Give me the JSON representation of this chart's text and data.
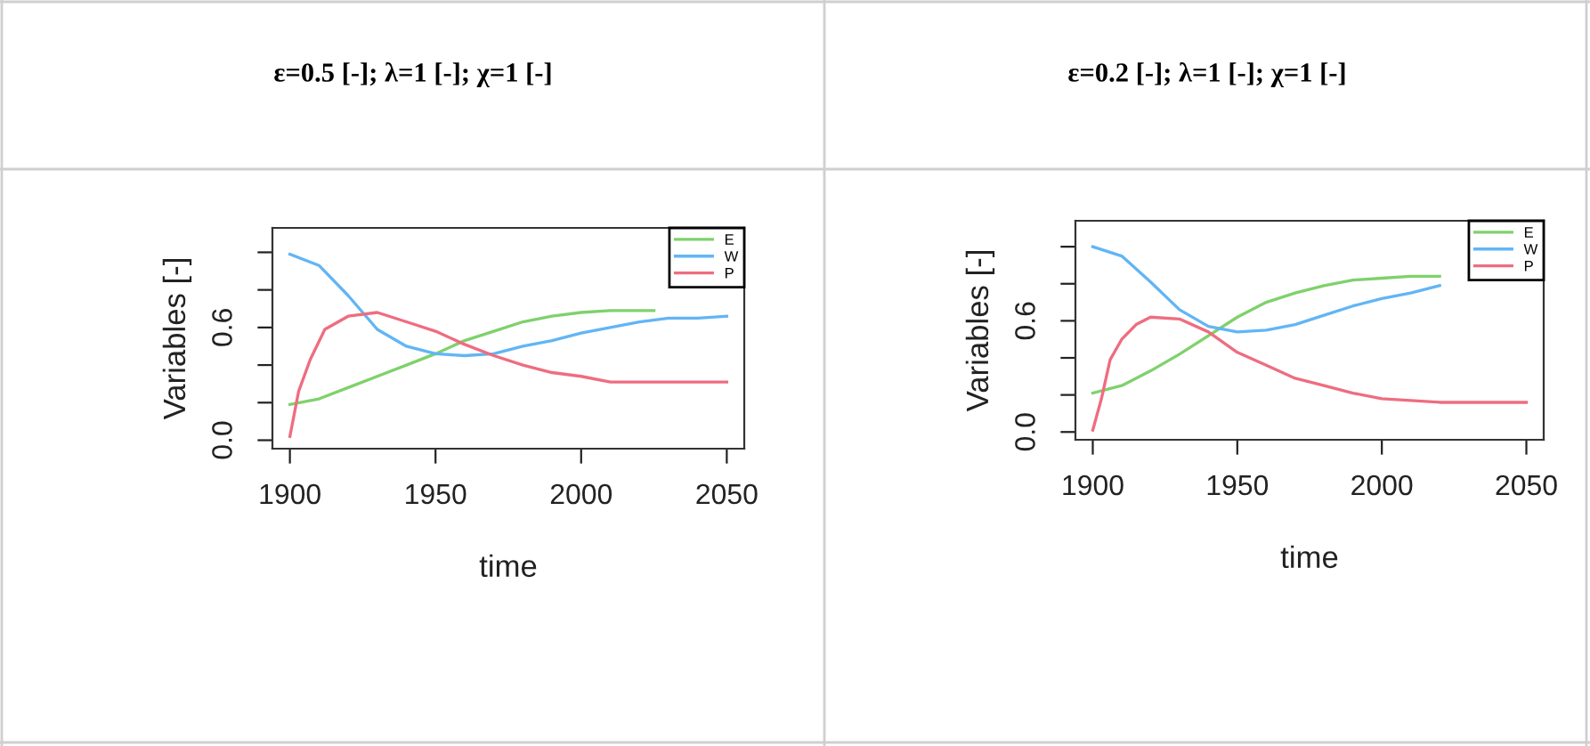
{
  "chart_data": [
    {
      "type": "line",
      "title": "ε=0.5 [-]; λ=1 [-]; χ=1 [-]",
      "xlabel": "time",
      "ylabel": "Variables [-]",
      "xlim": [
        1894,
        2056
      ],
      "ylim": [
        -0.045,
        1.13
      ],
      "xticks": [
        1900,
        1950,
        2000,
        2050
      ],
      "yticks": [
        {
          "value": 0,
          "label": "0.0"
        },
        {
          "value": 0.2,
          "label": null
        },
        {
          "value": 0.4,
          "label": null
        },
        {
          "value": 0.6,
          "label": "0.6"
        },
        {
          "value": 0.8,
          "label": null
        },
        {
          "value": 1.0,
          "label": null
        }
      ],
      "legend": "top right",
      "grid": false,
      "series": [
        {
          "name": "E",
          "color": "#7fd16c",
          "x": [
            1900,
            1910,
            1920,
            1930,
            1940,
            1950,
            1960,
            1970,
            1980,
            1990,
            2000,
            2010,
            2020,
            2025
          ],
          "values": [
            0.19,
            0.22,
            0.28,
            0.34,
            0.4,
            0.46,
            0.53,
            0.58,
            0.63,
            0.66,
            0.68,
            0.69,
            0.69,
            0.69
          ]
        },
        {
          "name": "W",
          "color": "#61b5f5",
          "x": [
            1900,
            1910,
            1920,
            1930,
            1940,
            1950,
            1960,
            1970,
            1980,
            1990,
            2000,
            2010,
            2020,
            2030,
            2040,
            2050
          ],
          "values": [
            0.99,
            0.93,
            0.77,
            0.59,
            0.5,
            0.46,
            0.45,
            0.46,
            0.5,
            0.53,
            0.57,
            0.6,
            0.63,
            0.65,
            0.65,
            0.66
          ]
        },
        {
          "name": "P",
          "color": "#ee6d7f",
          "x": [
            1900,
            1903,
            1907,
            1912,
            1920,
            1930,
            1940,
            1950,
            1960,
            1970,
            1980,
            1990,
            2000,
            2010,
            2020,
            2050
          ],
          "values": [
            0.02,
            0.26,
            0.43,
            0.59,
            0.66,
            0.68,
            0.63,
            0.58,
            0.51,
            0.45,
            0.4,
            0.36,
            0.34,
            0.31,
            0.31,
            0.31
          ]
        }
      ]
    },
    {
      "type": "line",
      "title": "ε=0.2 [-]; λ=1 [-]; χ=1 [-]",
      "xlabel": "time",
      "ylabel": "Variables [-]",
      "xlim": [
        1894,
        2056
      ],
      "ylim": [
        -0.042,
        1.14
      ],
      "xticks": [
        1900,
        1950,
        2000,
        2050
      ],
      "yticks": [
        {
          "value": 0,
          "label": "0.0"
        },
        {
          "value": 0.2,
          "label": null
        },
        {
          "value": 0.4,
          "label": null
        },
        {
          "value": 0.6,
          "label": "0.6"
        },
        {
          "value": 0.8,
          "label": null
        },
        {
          "value": 1.0,
          "label": null
        }
      ],
      "legend": "top right",
      "grid": false,
      "series": [
        {
          "name": "E",
          "color": "#7fd16c",
          "x": [
            1900,
            1910,
            1920,
            1930,
            1940,
            1950,
            1960,
            1970,
            1980,
            1990,
            2000,
            2010,
            2020
          ],
          "values": [
            0.21,
            0.25,
            0.33,
            0.42,
            0.52,
            0.62,
            0.7,
            0.75,
            0.79,
            0.82,
            0.83,
            0.84,
            0.84
          ]
        },
        {
          "name": "W",
          "color": "#61b5f5",
          "x": [
            1900,
            1910,
            1920,
            1930,
            1940,
            1950,
            1960,
            1970,
            1980,
            1990,
            2000,
            2010,
            2020
          ],
          "values": [
            1.0,
            0.95,
            0.81,
            0.66,
            0.57,
            0.54,
            0.55,
            0.58,
            0.63,
            0.68,
            0.72,
            0.75,
            0.79
          ]
        },
        {
          "name": "P",
          "color": "#ee6d7f",
          "x": [
            1900,
            1903,
            1906,
            1910,
            1915,
            1920,
            1930,
            1940,
            1950,
            1960,
            1970,
            1980,
            1990,
            2000,
            2010,
            2020,
            2050
          ],
          "values": [
            0.01,
            0.18,
            0.39,
            0.5,
            0.58,
            0.62,
            0.61,
            0.54,
            0.43,
            0.36,
            0.29,
            0.25,
            0.21,
            0.18,
            0.17,
            0.16,
            0.16
          ]
        }
      ]
    }
  ]
}
